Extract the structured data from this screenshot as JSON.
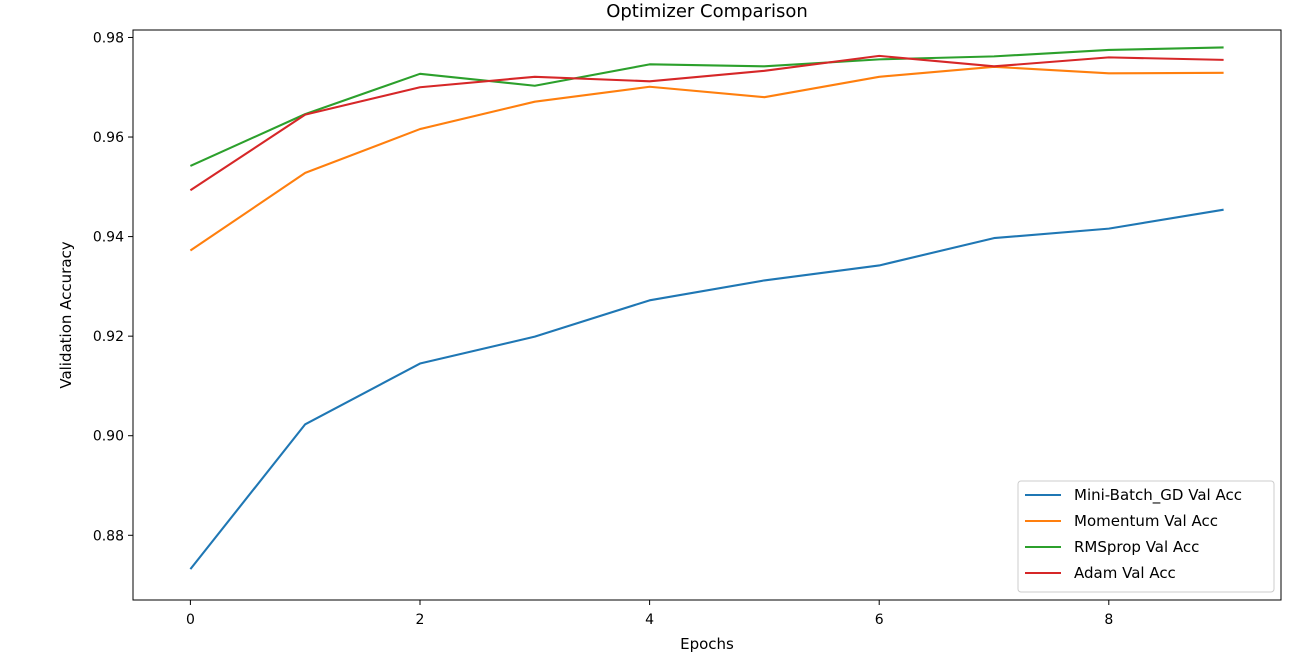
{
  "chart_data": {
    "type": "line",
    "title": "Optimizer Comparison",
    "xlabel": "Epochs",
    "ylabel": "Validation Accuracy",
    "x": [
      0,
      1,
      2,
      3,
      4,
      5,
      6,
      7,
      8,
      9
    ],
    "xticks": [
      0,
      2,
      4,
      6,
      8
    ],
    "yticks": [
      0.88,
      0.9,
      0.92,
      0.94,
      0.96,
      0.98
    ],
    "xlim": [
      -0.5,
      9.5
    ],
    "ylim": [
      0.867,
      0.9815
    ],
    "grid": false,
    "legend": "lower-right",
    "series": [
      {
        "name": "Mini-Batch_GD Val Acc",
        "color": "#1f77b4",
        "values": [
          0.8732,
          0.9023,
          0.9145,
          0.9199,
          0.9272,
          0.9312,
          0.9342,
          0.9397,
          0.9416,
          0.9454
        ]
      },
      {
        "name": "Momentum Val Acc",
        "color": "#ff7f0e",
        "values": [
          0.9372,
          0.9528,
          0.9616,
          0.9671,
          0.9701,
          0.968,
          0.9721,
          0.9741,
          0.9728,
          0.9729
        ]
      },
      {
        "name": "RMSprop Val Acc",
        "color": "#2ca02c",
        "values": [
          0.9542,
          0.9646,
          0.9727,
          0.9703,
          0.9746,
          0.9742,
          0.9756,
          0.9762,
          0.9775,
          0.978
        ]
      },
      {
        "name": "Adam Val Acc",
        "color": "#d62728",
        "values": [
          0.9493,
          0.9645,
          0.97,
          0.9721,
          0.9712,
          0.9733,
          0.9763,
          0.9742,
          0.976,
          0.9755
        ]
      }
    ]
  }
}
